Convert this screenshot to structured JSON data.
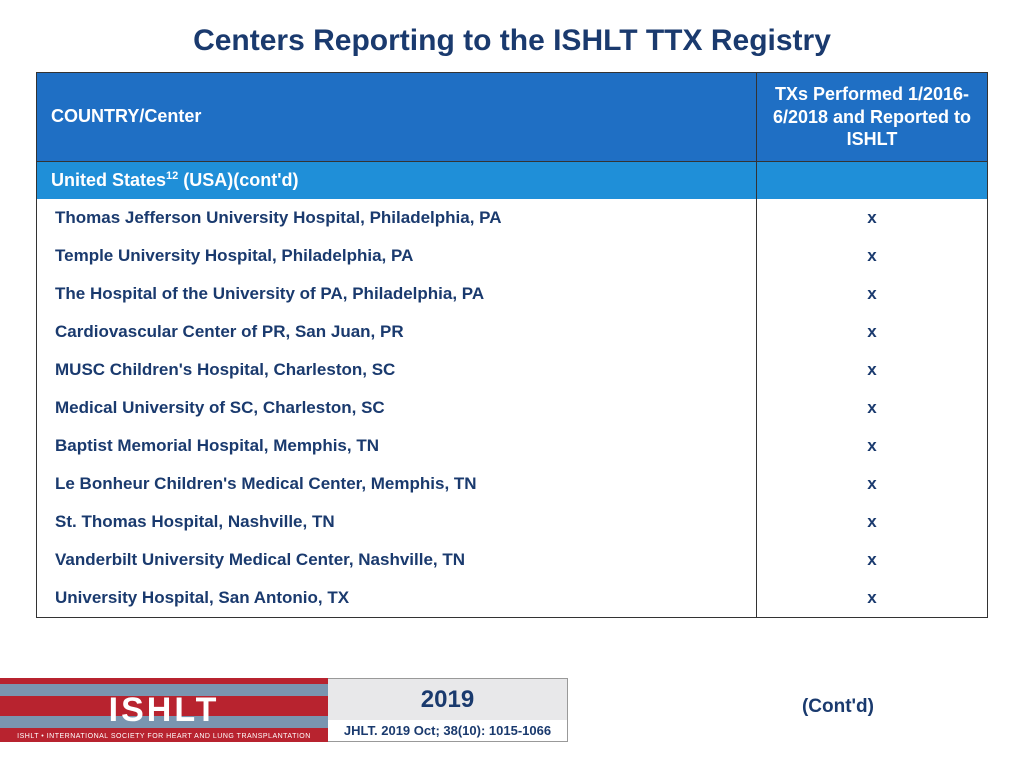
{
  "colors": {
    "title": "#1a3a6e",
    "header_bg": "#1f6fc4",
    "subhead_bg": "#1f8fd8",
    "row_text": "#1a3a6e",
    "logo_bg": "#b8232f",
    "logo_stripe": "#7a95b0",
    "year_text": "#1a3a6e",
    "citation_text": "#1a3a6e",
    "contd_text": "#1a3a6e"
  },
  "title": "Centers Reporting to the ISHLT TTX Registry",
  "table": {
    "header": {
      "left": "COUNTRY/Center",
      "right": "TXs Performed 1/2016-6/2018 and Reported to ISHLT"
    },
    "subheader": {
      "country": "United States",
      "sup": "12",
      "suffix": " (USA)(cont'd)"
    },
    "rows": [
      {
        "center": "Thomas Jefferson University Hospital, Philadelphia, PA",
        "mark": "x"
      },
      {
        "center": "Temple University Hospital, Philadelphia, PA",
        "mark": "x"
      },
      {
        "center": "The Hospital of the University of PA, Philadelphia, PA",
        "mark": "x"
      },
      {
        "center": "Cardiovascular Center of PR, San Juan, PR",
        "mark": "x"
      },
      {
        "center": "MUSC Children's Hospital, Charleston, SC",
        "mark": "x"
      },
      {
        "center": "Medical University of SC, Charleston, SC",
        "mark": "x"
      },
      {
        "center": "Baptist Memorial Hospital, Memphis, TN",
        "mark": "x"
      },
      {
        "center": "Le Bonheur Children's Medical Center, Memphis, TN",
        "mark": "x"
      },
      {
        "center": "St. Thomas Hospital, Nashville, TN",
        "mark": "x"
      },
      {
        "center": "Vanderbilt University Medical Center, Nashville, TN",
        "mark": "x"
      },
      {
        "center": "University Hospital, San Antonio, TX",
        "mark": "x"
      }
    ]
  },
  "footer": {
    "logo": "ISHLT",
    "logo_sub": "ISHLT • INTERNATIONAL SOCIETY FOR HEART AND LUNG TRANSPLANTATION",
    "year": "2019",
    "citation": "JHLT. 2019 Oct; 38(10): 1015-1066",
    "contd": "(Cont'd)"
  }
}
